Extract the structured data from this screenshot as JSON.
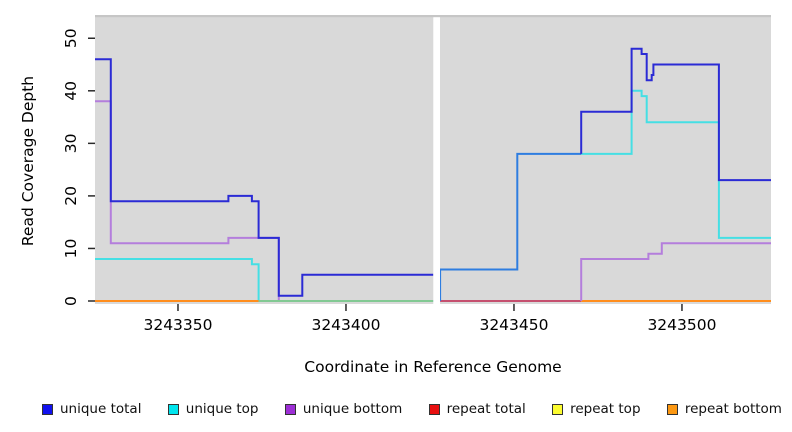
{
  "chart_data": {
    "type": "line",
    "subtype": "step-coverage-plot",
    "title": "",
    "xlabel": "Coordinate in Reference Genome",
    "ylabel": "Read Coverage Depth",
    "x_ticks": [
      3243350,
      3243400,
      3243450,
      3243500
    ],
    "y_ticks": [
      0,
      10,
      20,
      30,
      40,
      50
    ],
    "x_range": [
      3243325.3,
      3243526.5
    ],
    "y_range": [
      0,
      54
    ],
    "grid": "off",
    "panel_background": "#D9D9D9",
    "gap": {
      "from": 3243426,
      "to": 3243428,
      "color": "#FFFFFF"
    },
    "legend_position": "bottom",
    "legend": [
      {
        "label": "unique total",
        "color": "#1111EE"
      },
      {
        "label": "unique top",
        "color": "#00E5EE"
      },
      {
        "label": "unique bottom",
        "color": "#9D2FD6"
      },
      {
        "label": "repeat total",
        "color": "#E81010"
      },
      {
        "label": "repeat top",
        "color": "#FCFC30"
      },
      {
        "label": "repeat bottom",
        "color": "#FC9812"
      }
    ],
    "segments": [
      {
        "name": "unique-bottom-pre-gap",
        "color": "#B47EDC",
        "entry": null,
        "steps": [
          [
            3243325.3,
            38
          ],
          [
            3243330,
            11
          ],
          [
            3243365,
            12
          ],
          [
            3243380,
            0
          ]
        ],
        "end": 3243426
      },
      {
        "name": "unique-top-pre-gap",
        "color": "#45DFE4",
        "entry": null,
        "steps": [
          [
            3243325.3,
            8
          ],
          [
            3243372,
            7
          ],
          [
            3243374,
            0
          ]
        ],
        "end": 3243426
      },
      {
        "name": "zero-line-orange-left",
        "color": "#FF8D1C",
        "entry": null,
        "steps": [
          [
            3243325.3,
            0
          ]
        ],
        "end": 3243374
      },
      {
        "name": "zero-line-green",
        "color": "#82C993",
        "entry": null,
        "steps": [
          [
            3243374,
            0
          ]
        ],
        "end": 3243426
      },
      {
        "name": "zero-line-crimson",
        "color": "#C5506F",
        "entry": null,
        "steps": [
          [
            3243428,
            0
          ]
        ],
        "end": 3243470
      },
      {
        "name": "zero-line-orange-right",
        "color": "#FF8D1C",
        "entry": null,
        "steps": [
          [
            3243470,
            0
          ]
        ],
        "end": 3243526.5
      },
      {
        "name": "unique-bottom-post-gap",
        "color": "#B47EDC",
        "entry": 0,
        "steps": [
          [
            3243470,
            8
          ],
          [
            3243490,
            9
          ],
          [
            3243494,
            11
          ]
        ],
        "end": 3243526.5
      },
      {
        "name": "unique-top-post-gap",
        "color": "#45DFE4",
        "entry": null,
        "steps": [
          [
            3243470,
            28
          ],
          [
            3243485,
            40
          ],
          [
            3243488,
            39
          ],
          [
            3243489.5,
            34
          ],
          [
            3243511,
            12
          ]
        ],
        "end": 3243526.5
      },
      {
        "name": "unique-total-post-gap-light",
        "color": "#2E7DE0",
        "entry": 0,
        "steps": [
          [
            3243428,
            6
          ],
          [
            3243451,
            28
          ]
        ],
        "end": 3243470
      },
      {
        "name": "unique-total-pre-gap",
        "color": "#2B2BD5",
        "entry": null,
        "steps": [
          [
            3243325.3,
            46
          ],
          [
            3243330,
            19
          ],
          [
            3243365,
            20
          ],
          [
            3243372,
            19
          ],
          [
            3243374,
            12
          ],
          [
            3243380,
            1
          ],
          [
            3243387,
            5
          ]
        ],
        "end": 3243426
      },
      {
        "name": "unique-total-post-gap-dark",
        "color": "#2B2BD5",
        "entry": 28,
        "steps": [
          [
            3243470,
            36
          ],
          [
            3243485,
            48
          ],
          [
            3243488,
            47
          ],
          [
            3243489.5,
            42
          ],
          [
            3243491,
            43
          ],
          [
            3243491.5,
            45
          ],
          [
            3243511,
            23
          ]
        ],
        "end": 3243526.5
      }
    ]
  }
}
